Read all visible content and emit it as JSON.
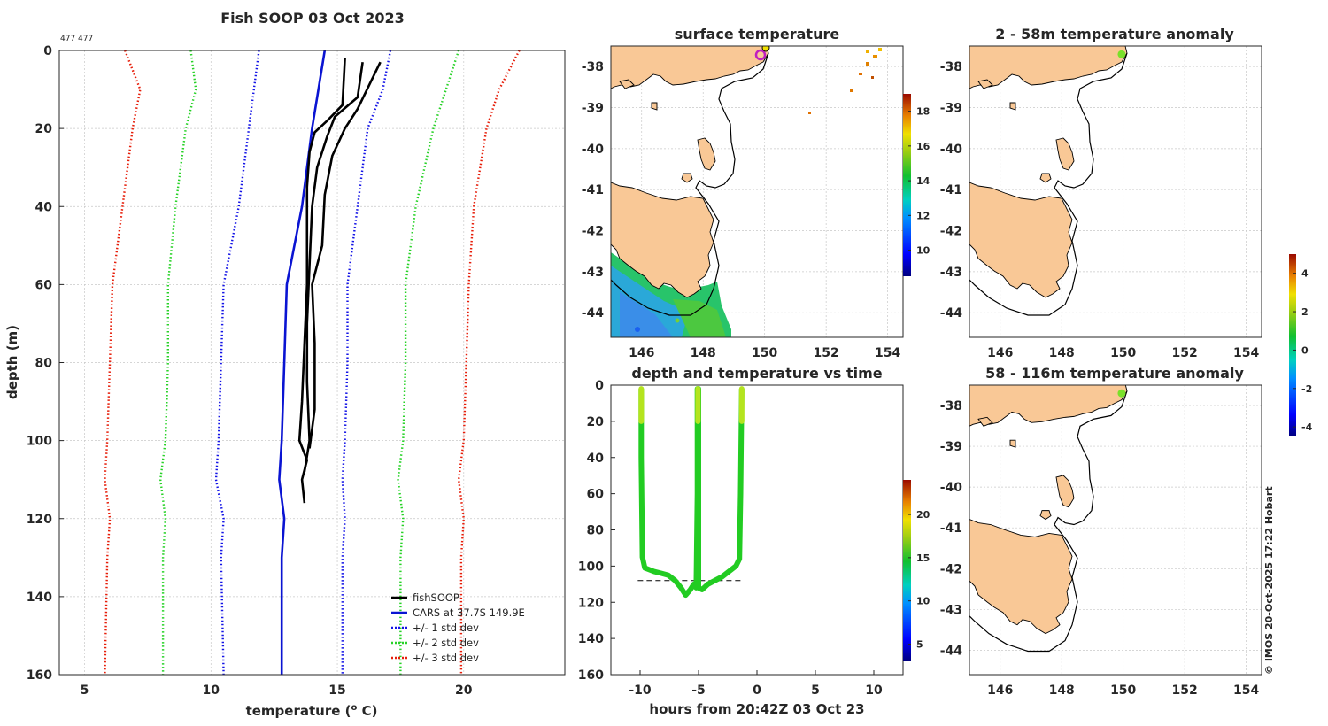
{
  "page_title": "Fish SOOP 03 Oct 2023",
  "profile_count": "477 477",
  "credit": "© IMOS 20-Oct-2025 17:22 Hobart",
  "colors": {
    "fishsoop": "#000000",
    "cars": "#0a14d2",
    "sd1": "#1414e6",
    "sd2": "#28d228",
    "sd3": "#e61e0a",
    "land": "#f9c896"
  },
  "chart_data": [
    {
      "type": "line",
      "name": "profile",
      "title": "Fish SOOP 03 Oct 2023",
      "xlabel": "temperature (",
      "xlabel_sup": "o",
      "xlabel_unit": " C)",
      "ylabel": "depth (m)",
      "xlim": [
        4,
        24
      ],
      "ylim": [
        160,
        0
      ],
      "xticks": [
        5,
        10,
        15,
        20
      ],
      "yticks": [
        0,
        20,
        40,
        60,
        80,
        100,
        120,
        140,
        160
      ],
      "series": [
        {
          "name": "CARS mean",
          "style": "solid",
          "color": "#0a14d2",
          "depth": [
            0,
            20,
            40,
            60,
            80,
            100,
            110,
            120,
            130,
            160
          ],
          "temp": [
            14.5,
            14.0,
            13.6,
            13.0,
            12.9,
            12.8,
            12.7,
            12.9,
            12.8,
            12.8
          ]
        },
        {
          "name": "-1 sd",
          "style": "dot",
          "color": "#1414e6",
          "depth": [
            0,
            20,
            40,
            60,
            80,
            100,
            110,
            120,
            130,
            160
          ],
          "temp": [
            11.9,
            11.5,
            11.1,
            10.5,
            10.4,
            10.3,
            10.2,
            10.5,
            10.4,
            10.5
          ]
        },
        {
          "name": "+1 sd",
          "style": "dot",
          "color": "#1414e6",
          "depth": [
            0,
            10,
            20,
            40,
            60,
            80,
            100,
            110,
            120,
            130,
            160
          ],
          "temp": [
            17.1,
            16.8,
            16.2,
            15.8,
            15.4,
            15.4,
            15.3,
            15.2,
            15.3,
            15.2,
            15.2
          ]
        },
        {
          "name": "-2 sd",
          "style": "dot",
          "color": "#28d228",
          "depth": [
            0,
            10,
            20,
            40,
            60,
            80,
            100,
            110,
            120,
            130,
            160
          ],
          "temp": [
            9.2,
            9.4,
            9.0,
            8.6,
            8.3,
            8.3,
            8.2,
            8.0,
            8.2,
            8.1,
            8.1
          ]
        },
        {
          "name": "+2 sd",
          "style": "dot",
          "color": "#28d228",
          "depth": [
            0,
            10,
            20,
            40,
            60,
            80,
            100,
            110,
            120,
            130,
            160
          ],
          "temp": [
            19.8,
            19.3,
            18.8,
            18.1,
            17.7,
            17.7,
            17.6,
            17.4,
            17.6,
            17.5,
            17.5
          ]
        },
        {
          "name": "-3 sd",
          "style": "dot",
          "color": "#e61e0a",
          "depth": [
            0,
            10,
            20,
            40,
            60,
            80,
            100,
            110,
            120,
            130,
            160
          ],
          "temp": [
            6.6,
            7.2,
            6.9,
            6.5,
            6.1,
            6.0,
            5.9,
            5.8,
            6.0,
            5.9,
            5.8
          ]
        },
        {
          "name": "+3 sd",
          "style": "dot",
          "color": "#e61e0a",
          "depth": [
            0,
            10,
            20,
            40,
            60,
            80,
            100,
            110,
            120,
            130,
            160
          ],
          "temp": [
            22.2,
            21.4,
            20.9,
            20.4,
            20.2,
            20.1,
            20.0,
            19.8,
            20.0,
            19.9,
            19.9
          ]
        },
        {
          "name": "fishSOOP cast 1",
          "style": "solid",
          "color": "#000000",
          "depth": [
            2,
            14,
            18,
            21,
            26,
            35,
            45,
            60,
            75,
            90,
            100,
            105,
            110,
            116
          ],
          "temp": [
            15.3,
            15.2,
            14.6,
            14.1,
            13.9,
            13.8,
            13.8,
            13.8,
            13.7,
            13.6,
            13.5,
            13.8,
            13.6,
            13.7
          ]
        },
        {
          "name": "fishSOOP cast 2",
          "style": "solid",
          "color": "#000000",
          "depth": [
            3,
            12,
            17,
            22,
            30,
            40,
            55,
            70,
            85,
            100,
            108
          ],
          "temp": [
            16.0,
            15.8,
            14.9,
            14.6,
            14.2,
            14.0,
            13.9,
            13.8,
            13.8,
            13.9,
            13.7
          ]
        },
        {
          "name": "fishSOOP cast 3",
          "style": "solid",
          "color": "#000000",
          "depth": [
            3,
            7,
            15,
            20,
            27,
            37,
            50,
            60,
            75,
            92,
            102
          ],
          "temp": [
            16.7,
            16.4,
            15.8,
            15.3,
            14.8,
            14.5,
            14.4,
            14.0,
            14.1,
            14.1,
            13.9
          ]
        }
      ],
      "legend": [
        "fishSOOP",
        "CARS at 37.7S 149.9E",
        "+/- 1 std dev",
        "+/- 2 std dev",
        "+/- 3 std dev"
      ],
      "legend_position": "bottom-right"
    },
    {
      "type": "map",
      "name": "surface-temperature",
      "title": "surface temperature",
      "xticks": [
        "146",
        "148",
        "150",
        "152",
        "154"
      ],
      "yticks": [
        "-38",
        "-39",
        "-40",
        "-41",
        "-42",
        "-43",
        "-44"
      ],
      "lon": [
        145,
        154.5
      ],
      "lat": [
        -44.6,
        -37.5
      ],
      "colorbar_ticks": [
        "10",
        "12",
        "14",
        "16",
        "18"
      ],
      "colorbar_range": [
        8.5,
        19
      ]
    },
    {
      "type": "map",
      "name": "anomaly-2-58",
      "title": "2 - 58m temperature anomaly",
      "xticks": [
        "146",
        "148",
        "150",
        "152",
        "154"
      ],
      "yticks": [
        "-38",
        "-39",
        "-40",
        "-41",
        "-42",
        "-43",
        "-44"
      ],
      "lon": [
        145,
        154.5
      ],
      "lat": [
        -44.6,
        -37.5
      ],
      "marker": {
        "lon": 149.95,
        "lat": -37.7
      }
    },
    {
      "type": "map",
      "name": "anomaly-58-116",
      "title": "58 - 116m temperature anomaly",
      "xticks": [
        "146",
        "148",
        "150",
        "152",
        "154"
      ],
      "yticks": [
        "-38",
        "-39",
        "-40",
        "-41",
        "-42",
        "-43",
        "-44"
      ],
      "lon": [
        145,
        154.5
      ],
      "lat": [
        -44.6,
        -37.5
      ],
      "marker": {
        "lon": 149.95,
        "lat": -37.7
      }
    },
    {
      "type": "scatter",
      "name": "depth-time",
      "title": "depth and temperature vs time",
      "xlabel": "hours from 20:42Z 03 Oct 23",
      "xlim": [
        -12.5,
        12.5
      ],
      "ylim": [
        160,
        0
      ],
      "xticks": [
        -10,
        -5,
        0,
        5,
        10
      ],
      "yticks": [
        0,
        20,
        40,
        60,
        80,
        100,
        120,
        140,
        160
      ],
      "bottom_depth": 108,
      "track": {
        "hours": [
          -9.9,
          -9.9,
          -9.8,
          -9.6,
          -9.2,
          -8.8,
          -8.2,
          -7.6,
          -7.0,
          -6.5,
          -6.1,
          -5.7,
          -5.4,
          -5.2,
          -5.1,
          -5.1,
          -5.0,
          -5.0,
          -5.0,
          -4.7,
          -4.2,
          -3.6,
          -3.0,
          -2.4,
          -1.8,
          -1.5,
          -1.4,
          -1.3
        ],
        "depth": [
          2,
          40,
          95,
          101,
          102,
          103,
          104,
          105,
          108,
          112,
          116,
          113,
          110,
          112,
          60,
          2,
          2,
          60,
          112,
          113,
          110,
          108,
          106,
          103,
          100,
          96,
          60,
          2
        ]
      },
      "colorbar_ticks": [
        "5",
        "10",
        "15",
        "20"
      ],
      "colorbar_range": [
        3,
        24
      ]
    },
    {
      "type": "heatmap",
      "name": "anomaly-colorbar",
      "colorbar_ticks": [
        "-4",
        "-2",
        "0",
        "2",
        "4"
      ],
      "colorbar_range": [
        -4.5,
        5
      ]
    }
  ]
}
